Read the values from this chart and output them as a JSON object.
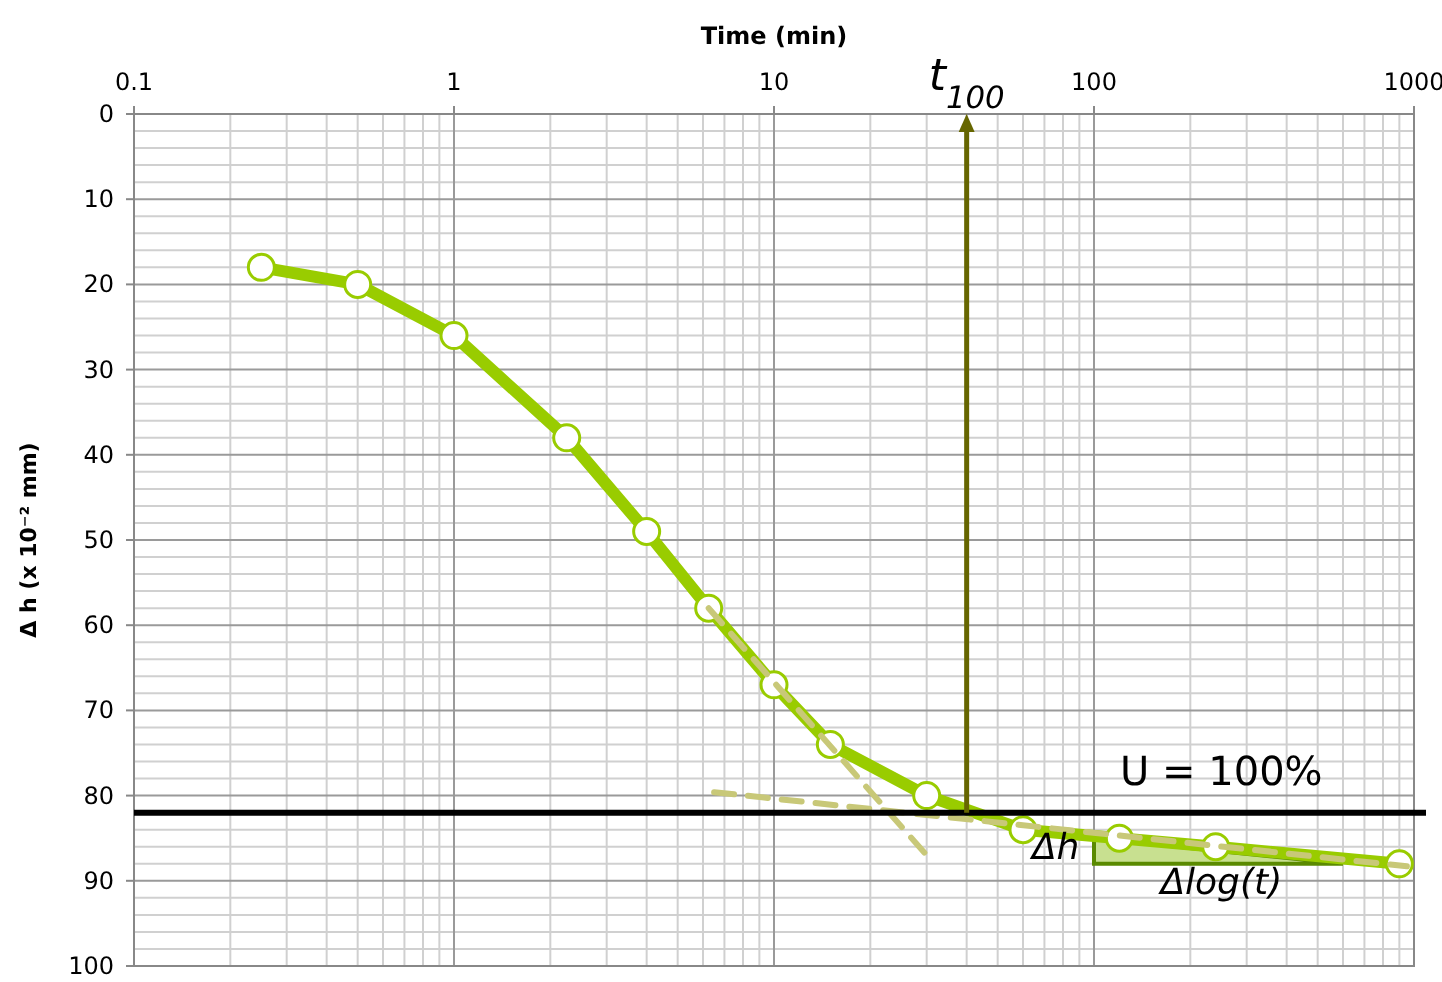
{
  "chart_data": {
    "type": "line",
    "xlabel": "Time (min)",
    "ylabel": "Δ h (x 10⁻² mm)",
    "log": "x",
    "xlim": [
      0.1,
      1000
    ],
    "xticks": [
      0.1,
      1,
      10,
      100,
      1000
    ],
    "ylim": [
      100,
      0
    ],
    "yticks": [
      0,
      10,
      20,
      30,
      40,
      50,
      60,
      70,
      80,
      90,
      100
    ],
    "grid": true,
    "marker": "circle",
    "series": [
      {
        "color": "#99cc00",
        "x": [
          0.25,
          0.5,
          1,
          2.25,
          4,
          6.25,
          10,
          15,
          30,
          60,
          120,
          240,
          900
        ],
        "values": [
          18,
          20,
          26,
          38,
          49,
          58,
          67,
          74,
          80,
          84,
          85,
          86,
          88
        ]
      },
      {
        "color": "#c8c878",
        "type": "line",
        "marker": "none",
        "line_style": "dashed",
        "x": [
          6.25,
          30
        ],
        "values": [
          58,
          87
        ]
      },
      {
        "color": "#c8c878",
        "type": "line",
        "marker": "none",
        "line_style": "dashed",
        "x": [
          6.5,
          950
        ],
        "values": [
          79.6,
          88.3
        ]
      }
    ],
    "ref_lines": [
      {
        "axis": "y",
        "value": 82,
        "color": "#000000"
      },
      {
        "axis": "x",
        "value": 40,
        "label": "t$_{100}$",
        "color": "#666600"
      }
    ],
    "annotations": [
      {
        "text": "U = 100%",
        "x": 250,
        "y": 82
      },
      {
        "text": "Δh",
        "x": 90,
        "y": 86
      },
      "Δlog(t)"
    ]
  }
}
